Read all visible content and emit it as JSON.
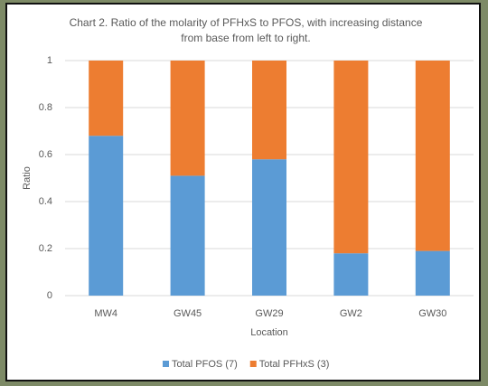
{
  "chart_data": {
    "type": "stacked_bar",
    "title": [
      "Chart 2. Ratio of the molarity of PFHxS to PFOS, with increasing distance",
      "from base from left to right."
    ],
    "x_label": "Location",
    "y_label": "Ratio",
    "categories": [
      "MW4",
      "GW45",
      "GW29",
      "GW2",
      "GW30"
    ],
    "series": [
      {
        "name": "Total PFOS (7)",
        "color": "#5b9bd5",
        "values": [
          0.68,
          0.51,
          0.58,
          0.18,
          0.19
        ]
      },
      {
        "name": "Total PFHxS (3)",
        "color": "#ed7d31",
        "values": [
          0.32,
          0.49,
          0.42,
          0.82,
          0.81
        ]
      }
    ],
    "ylim": [
      0,
      1
    ],
    "yticks": [
      0,
      0.2,
      0.4,
      0.6,
      0.8,
      1
    ],
    "grid": true,
    "legend": "bottom"
  }
}
